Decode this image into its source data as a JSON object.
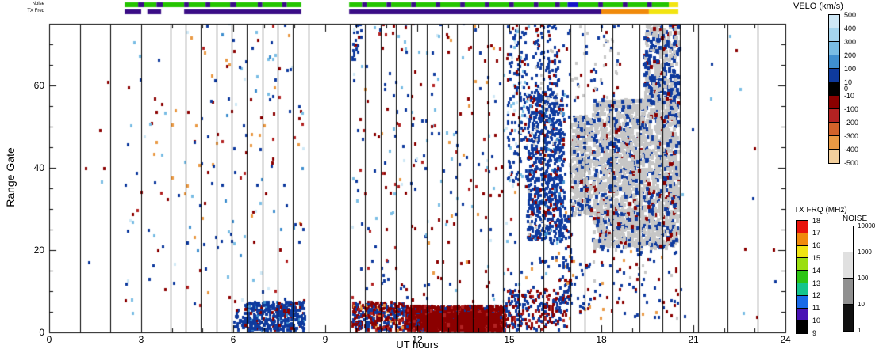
{
  "chart_data": {
    "type": "heatmap",
    "subtype": "range-time scatter (radar range-time-intensity plot)",
    "xlabel": "UT hours",
    "ylabel": "Range Gate",
    "xlim": [
      0,
      24
    ],
    "ylim": [
      0,
      75
    ],
    "x_ticks": [
      0,
      3,
      6,
      9,
      12,
      15,
      18,
      21,
      24
    ],
    "x_minor_step": 1,
    "y_ticks": [
      0,
      20,
      40,
      60
    ],
    "y_minor_step": 5,
    "grid": false,
    "legend_position": "right",
    "scan_line_times": [
      1.0,
      2.0,
      3.0,
      3.95,
      4.45,
      4.95,
      5.45,
      5.95,
      6.45,
      6.95,
      7.45,
      7.95,
      8.45,
      9.8,
      10.3,
      10.8,
      11.3,
      11.8,
      12.3,
      12.8,
      13.3,
      13.8,
      14.3,
      14.8,
      15.3,
      16.1,
      17.0,
      17.45,
      18.35,
      19.25,
      20.0,
      20.55,
      21.15,
      22.1,
      23.1
    ],
    "palette": {
      "navy": "#0e3a9e",
      "medblue": "#3f8fcf",
      "lightblue": "#79bde4",
      "paleblue": "#cfe8f6",
      "darkred": "#8b0000",
      "red": "#b22222",
      "orangered": "#d2622a",
      "orange_pt": "#ea9a44",
      "peach": "#f3cf9c",
      "gray": "#c6c6c6",
      "strip_green": "#25c400",
      "strip_purple": "#3a0d86",
      "strip_blue": "#1616c8",
      "strip_yellow": "#f2e412",
      "strip_orange": "#f08a0b"
    },
    "top_strips": {
      "noise": {
        "label": "Noise",
        "y": 3,
        "h": 6,
        "segments": [
          [
            2.46,
            2.9,
            "strip_green"
          ],
          [
            2.9,
            3.1,
            "strip_purple"
          ],
          [
            3.1,
            3.5,
            "strip_green"
          ],
          [
            3.5,
            3.7,
            "strip_purple"
          ],
          [
            3.7,
            4.4,
            "strip_green"
          ],
          [
            4.4,
            4.55,
            "strip_purple"
          ],
          [
            4.55,
            5.1,
            "strip_green"
          ],
          [
            5.1,
            5.25,
            "strip_purple"
          ],
          [
            5.25,
            5.9,
            "strip_green"
          ],
          [
            5.9,
            6.1,
            "strip_purple"
          ],
          [
            6.1,
            6.8,
            "strip_green"
          ],
          [
            6.8,
            6.95,
            "strip_purple"
          ],
          [
            6.95,
            7.6,
            "strip_green"
          ],
          [
            7.6,
            7.75,
            "strip_purple"
          ],
          [
            7.75,
            8.22,
            "strip_green"
          ],
          [
            9.78,
            10.2,
            "strip_green"
          ],
          [
            10.2,
            10.35,
            "strip_purple"
          ],
          [
            10.35,
            11.0,
            "strip_green"
          ],
          [
            11.0,
            11.15,
            "strip_purple"
          ],
          [
            11.15,
            11.8,
            "strip_green"
          ],
          [
            11.8,
            11.95,
            "strip_purple"
          ],
          [
            11.95,
            12.6,
            "strip_green"
          ],
          [
            12.6,
            12.75,
            "strip_purple"
          ],
          [
            12.75,
            13.4,
            "strip_green"
          ],
          [
            13.4,
            13.55,
            "strip_purple"
          ],
          [
            13.55,
            14.2,
            "strip_green"
          ],
          [
            14.2,
            14.35,
            "strip_purple"
          ],
          [
            14.35,
            15.0,
            "strip_green"
          ],
          [
            15.0,
            15.15,
            "strip_purple"
          ],
          [
            15.15,
            15.8,
            "strip_green"
          ],
          [
            15.8,
            15.95,
            "strip_purple"
          ],
          [
            15.95,
            16.5,
            "strip_green"
          ],
          [
            16.5,
            16.65,
            "strip_purple"
          ],
          [
            16.65,
            16.9,
            "strip_green"
          ],
          [
            16.9,
            17.25,
            "strip_blue"
          ],
          [
            17.25,
            17.9,
            "strip_green"
          ],
          [
            17.9,
            18.05,
            "strip_purple"
          ],
          [
            18.05,
            18.7,
            "strip_green"
          ],
          [
            18.7,
            18.85,
            "strip_purple"
          ],
          [
            18.85,
            19.5,
            "strip_green"
          ],
          [
            19.5,
            19.65,
            "strip_purple"
          ],
          [
            19.65,
            20.2,
            "strip_green"
          ],
          [
            20.2,
            20.51,
            "strip_yellow"
          ]
        ]
      },
      "txfreq": {
        "label": "TX Freq",
        "y": 12,
        "h": 6,
        "segments": [
          [
            2.46,
            3.0,
            "strip_purple"
          ],
          [
            3.2,
            3.65,
            "strip_purple"
          ],
          [
            4.4,
            8.22,
            "strip_purple"
          ],
          [
            9.78,
            18.0,
            "strip_purple"
          ],
          [
            18.0,
            19.55,
            "strip_orange"
          ],
          [
            19.55,
            20.51,
            "strip_yellow"
          ]
        ]
      }
    },
    "colorbars": {
      "velocity": {
        "title": "VELO (km/s)",
        "segment_colors": [
          "#cfe8f6",
          "#a5d5ee",
          "#79bde4",
          "#3f8fcf",
          "#0e3a9e",
          "#000000",
          "#8b0000",
          "#b22222",
          "#d2622a",
          "#ea9a44",
          "#f3cf9c"
        ],
        "tick_labels": [
          {
            "t": "500",
            "p": 0
          },
          {
            "t": "400",
            "p": 1
          },
          {
            "t": "300",
            "p": 2
          },
          {
            "t": "200",
            "p": 3
          },
          {
            "t": "100",
            "p": 4
          },
          {
            "t": "10",
            "p": 5
          },
          {
            "t": "0",
            "p": 5.5
          },
          {
            "t": "-10",
            "p": 6
          },
          {
            "t": "-100",
            "p": 7
          },
          {
            "t": "-200",
            "p": 8
          },
          {
            "t": "-300",
            "p": 9
          },
          {
            "t": "-400",
            "p": 10
          },
          {
            "t": "-500",
            "p": 11
          }
        ]
      },
      "txfrq": {
        "title": "TX FRQ (MHz)",
        "segment_colors": [
          "#e8130b",
          "#f08a0b",
          "#efe312",
          "#9ade10",
          "#2cc414",
          "#14c48c",
          "#1a6ae8",
          "#4812b4",
          "#000000"
        ],
        "tick_labels": [
          {
            "t": "18",
            "p": 0
          },
          {
            "t": "17",
            "p": 1
          },
          {
            "t": "16",
            "p": 2
          },
          {
            "t": "15",
            "p": 3
          },
          {
            "t": "14",
            "p": 4
          },
          {
            "t": "13",
            "p": 5
          },
          {
            "t": "12",
            "p": 6
          },
          {
            "t": "11",
            "p": 7
          },
          {
            "t": "10",
            "p": 8
          },
          {
            "t": "9",
            "p": 9
          }
        ]
      },
      "noise": {
        "title": "NOISE",
        "segment_colors": [
          "#ffffff",
          "#e0e0e0",
          "#909090",
          "#101010"
        ],
        "tick_labels": [
          {
            "t": "10000",
            "p": 0
          },
          {
            "t": "1000",
            "p": 1
          },
          {
            "t": "100",
            "p": 2
          },
          {
            "t": "10",
            "p": 3
          },
          {
            "t": "1",
            "p": 4
          }
        ]
      }
    },
    "point_clusters": [
      {
        "t": [
          1.05,
          2.45
        ],
        "g": [
          5,
          70
        ],
        "n": 6,
        "seed": 11,
        "colors": {
          "navy": 0.4,
          "darkred": 0.3,
          "lightblue": 0.3
        }
      },
      {
        "t": [
          2.45,
          4.4
        ],
        "g": [
          4,
          73
        ],
        "n": 48,
        "seed": 22,
        "colors": {
          "navy": 0.32,
          "lightblue": 0.14,
          "paleblue": 0.07,
          "darkred": 0.23,
          "orange_pt": 0.12,
          "red": 0.07,
          "peach": 0.05
        }
      },
      {
        "t": [
          4.4,
          8.3
        ],
        "g": [
          3,
          75
        ],
        "n": 155,
        "seed": 33,
        "colors": {
          "navy": 0.36,
          "lightblue": 0.13,
          "paleblue": 0.06,
          "darkred": 0.2,
          "orange_pt": 0.12,
          "red": 0.07,
          "medblue": 0.06
        }
      },
      {
        "t": [
          6.0,
          6.35
        ],
        "g": [
          0,
          5
        ],
        "n": 28,
        "seed": 44,
        "colors": {
          "navy": 0.9,
          "darkred": 0.1
        }
      },
      {
        "t": [
          6.35,
          8.3
        ],
        "g": [
          0,
          7
        ],
        "n": 430,
        "seed": 55,
        "colors": {
          "navy": 0.85,
          "darkred": 0.09,
          "medblue": 0.06
        }
      },
      {
        "t": [
          9.85,
          10.15
        ],
        "g": [
          66,
          75
        ],
        "n": 26,
        "seed": 66,
        "colors": {
          "navy": 0.85,
          "darkred": 0.15
        }
      },
      {
        "t": [
          9.85,
          15.3
        ],
        "g": [
          6,
          75
        ],
        "n": 280,
        "seed": 77,
        "colors": {
          "navy": 0.35,
          "lightblue": 0.13,
          "paleblue": 0.06,
          "darkred": 0.24,
          "orange_pt": 0.11,
          "red": 0.11
        }
      },
      {
        "t": [
          9.85,
          11.6
        ],
        "g": [
          0,
          7
        ],
        "n": 380,
        "seed": 88,
        "colors": {
          "darkred": 0.45,
          "navy": 0.42,
          "red": 0.08,
          "orange_pt": 0.05
        }
      },
      {
        "t": [
          11.6,
          14.85
        ],
        "g": [
          0,
          6
        ],
        "n": 1500,
        "seed": 99,
        "colors": {
          "darkred": 0.78,
          "red": 0.1,
          "navy": 0.12
        }
      },
      {
        "t": [
          12.2,
          14.6
        ],
        "g": [
          0,
          4
        ],
        "n": 900,
        "seed": 110,
        "colors": {
          "darkred": 0.95,
          "red": 0.05
        },
        "w": 4,
        "h": 5
      },
      {
        "t": [
          14.85,
          16.85
        ],
        "g": [
          0,
          10
        ],
        "n": 230,
        "seed": 121,
        "colors": {
          "navy": 0.56,
          "darkred": 0.34,
          "red": 0.1
        }
      },
      {
        "t": [
          14.9,
          15.6
        ],
        "g": [
          35,
          75
        ],
        "n": 150,
        "seed": 132,
        "colors": {
          "navy": 0.6,
          "paleblue": 0.14,
          "lightblue": 0.14,
          "darkred": 0.12
        }
      },
      {
        "t": [
          15.3,
          17.0
        ],
        "g": [
          5,
          75
        ],
        "n": 120,
        "seed": 143,
        "colors": {
          "navy": 0.6,
          "darkred": 0.2,
          "orange_pt": 0.1,
          "lightblue": 0.1
        }
      },
      {
        "t": [
          15.55,
          16.75
        ],
        "g": [
          22,
          58
        ],
        "n": 780,
        "seed": 154,
        "colors": {
          "navy": 0.8,
          "darkred": 0.1,
          "medblue": 0.05,
          "gray": 0.05
        }
      },
      {
        "t": [
          15.8,
          16.6
        ],
        "g": [
          55,
          75
        ],
        "n": 90,
        "seed": 165,
        "colors": {
          "navy": 0.72,
          "darkred": 0.12,
          "gray": 0.16
        }
      },
      {
        "t": [
          16.6,
          17.0
        ],
        "g": [
          8,
          30
        ],
        "n": 60,
        "seed": 176,
        "colors": {
          "navy": 0.7,
          "darkred": 0.3
        }
      },
      {
        "t": [
          16.95,
          17.65
        ],
        "g": [
          28,
          52
        ],
        "n": 330,
        "seed": 187,
        "colors": {
          "gray": 0.72,
          "navy": 0.22,
          "darkred": 0.06
        },
        "w": 4,
        "h": 5
      },
      {
        "t": [
          17.0,
          18.6
        ],
        "g": [
          56,
          75
        ],
        "n": 60,
        "seed": 198,
        "colors": {
          "gray": 0.4,
          "navy": 0.4,
          "darkred": 0.2
        }
      },
      {
        "t": [
          17.7,
          20.5
        ],
        "g": [
          20,
          56
        ],
        "n": 2100,
        "seed": 209,
        "colors": {
          "gray": 0.76,
          "navy": 0.18,
          "darkred": 0.06
        },
        "w": 4,
        "h": 5
      },
      {
        "t": [
          19.35,
          20.5
        ],
        "g": [
          55,
          76
        ],
        "n": 380,
        "seed": 220,
        "colors": {
          "gray": 0.5,
          "navy": 0.42,
          "darkred": 0.08
        },
        "w": 4,
        "h": 5
      },
      {
        "t": [
          16.85,
          20.5
        ],
        "g": [
          3,
          20
        ],
        "n": 120,
        "seed": 231,
        "colors": {
          "navy": 0.5,
          "darkred": 0.3,
          "orange_pt": 0.1,
          "gray": 0.1
        }
      },
      {
        "t": [
          20.5,
          23.7
        ],
        "g": [
          3,
          72
        ],
        "n": 16,
        "seed": 242,
        "colors": {
          "navy": 0.45,
          "darkred": 0.3,
          "lightblue": 0.25
        }
      }
    ]
  }
}
